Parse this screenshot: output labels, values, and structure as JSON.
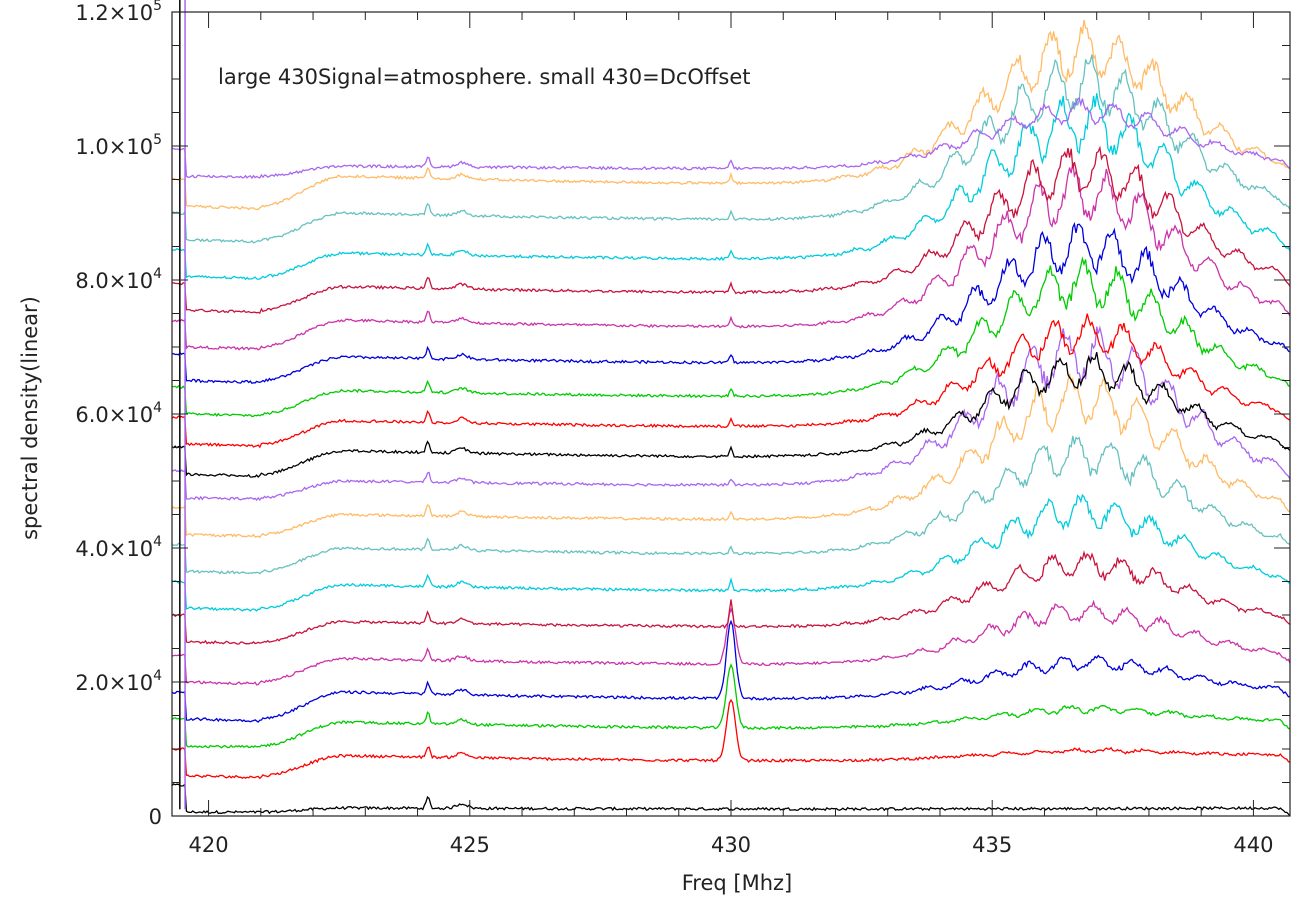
{
  "chart_data": {
    "type": "line",
    "title": "",
    "xlabel": "Freq [Mhz]",
    "ylabel": "spectral density(linear)",
    "annotation": "large 430Signal=atmosphere. small 430=DcOffset",
    "xlim": [
      419.3,
      440.7
    ],
    "ylim": [
      0,
      120000
    ],
    "x_ticks": [
      420,
      425,
      430,
      435,
      440
    ],
    "y_ticks": [
      {
        "value": 0,
        "mantissa": "0",
        "exponent": ""
      },
      {
        "value": 20000,
        "mantissa": "2.0×10",
        "exponent": "4"
      },
      {
        "value": 40000,
        "mantissa": "4.0×10",
        "exponent": "4"
      },
      {
        "value": 60000,
        "mantissa": "6.0×10",
        "exponent": "4"
      },
      {
        "value": 80000,
        "mantissa": "8.0×10",
        "exponent": "4"
      },
      {
        "value": 100000,
        "mantissa": "1.0×10",
        "exponent": "5"
      },
      {
        "value": 120000,
        "mantissa": "1.2×10",
        "exponent": "5"
      }
    ],
    "grid": false,
    "legend": "none",
    "series": [
      {
        "color": "#000000",
        "baseline": 600,
        "plateau": 1200,
        "hump": 0,
        "spike430": 0
      },
      {
        "color": "#ff0000",
        "baseline": 6000,
        "plateau": 9000,
        "hump": 1200,
        "spike430": 9000
      },
      {
        "color": "#00cc00",
        "baseline": 10500,
        "plateau": 14000,
        "hump": 2500,
        "spike430": 9500
      },
      {
        "color": "#0000dd",
        "baseline": 14500,
        "plateau": 18500,
        "hump": 5000,
        "spike430": 11500
      },
      {
        "color": "#cc33aa",
        "baseline": 20000,
        "plateau": 23500,
        "hump": 7500,
        "spike430": 8000
      },
      {
        "color": "#c8143c",
        "baseline": 26000,
        "plateau": 29000,
        "hump": 9000,
        "spike430": 4000
      },
      {
        "color": "#00ccdd",
        "baseline": 31000,
        "plateau": 34500,
        "hump": 11500,
        "spike430": 1500
      },
      {
        "color": "#66c2c0",
        "baseline": 36500,
        "plateau": 40000,
        "hump": 14500,
        "spike430": 1000
      },
      {
        "color": "#ffbb66",
        "baseline": 42000,
        "plateau": 45000,
        "hump": 17500,
        "spike430": 1000
      },
      {
        "color": "#aa66ee",
        "baseline": 47500,
        "plateau": 50000,
        "hump": 19500,
        "spike430": 1000
      },
      {
        "color": "#000000",
        "baseline": 51000,
        "plateau": 54500,
        "hump": 12500,
        "spike430": 1200
      },
      {
        "color": "#ff0000",
        "baseline": 55500,
        "plateau": 59000,
        "hump": 13500,
        "spike430": 1200
      },
      {
        "color": "#00cc00",
        "baseline": 60000,
        "plateau": 63500,
        "hump": 16500,
        "spike430": 1200
      },
      {
        "color": "#0000dd",
        "baseline": 65000,
        "plateau": 68500,
        "hump": 17000,
        "spike430": 1200
      },
      {
        "color": "#cc33aa",
        "baseline": 70000,
        "plateau": 74000,
        "hump": 19500,
        "spike430": 1200
      },
      {
        "color": "#c8143c",
        "baseline": 75500,
        "plateau": 79000,
        "hump": 18000,
        "spike430": 1200
      },
      {
        "color": "#00ccdd",
        "baseline": 80500,
        "plateau": 84000,
        "hump": 20000,
        "spike430": 1200
      },
      {
        "color": "#66c2c0",
        "baseline": 86000,
        "plateau": 90000,
        "hump": 20000,
        "spike430": 1200
      },
      {
        "color": "#ffbb66",
        "baseline": 91000,
        "plateau": 95500,
        "hump": 19500,
        "spike430": 1200
      },
      {
        "color": "#aa66ee",
        "baseline": 95500,
        "plateau": 97000,
        "hump": 8500,
        "spike430": 1200
      }
    ]
  }
}
